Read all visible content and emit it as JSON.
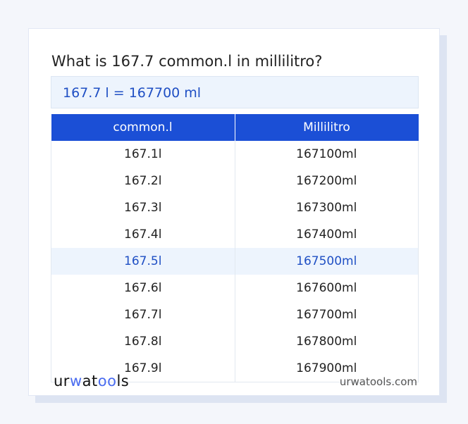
{
  "title": "What is 167.7 common.l in millilitro?",
  "result": "167.7 l = 167700 ml",
  "table": {
    "headers": [
      "common.l",
      "Millilitro"
    ],
    "rows": [
      [
        "167.1l",
        "167100ml"
      ],
      [
        "167.2l",
        "167200ml"
      ],
      [
        "167.3l",
        "167300ml"
      ],
      [
        "167.4l",
        "167400ml"
      ],
      [
        "167.5l",
        "167500ml"
      ],
      [
        "167.6l",
        "167600ml"
      ],
      [
        "167.7l",
        "167700ml"
      ],
      [
        "167.8l",
        "167800ml"
      ],
      [
        "167.9l",
        "167900ml"
      ]
    ],
    "highlighted_row": 4
  },
  "footer": {
    "logo": "urwatools",
    "site": "urwatools.com"
  },
  "colors": {
    "accent": "#1b4fd6",
    "highlight_bg": "#edf4fd"
  }
}
